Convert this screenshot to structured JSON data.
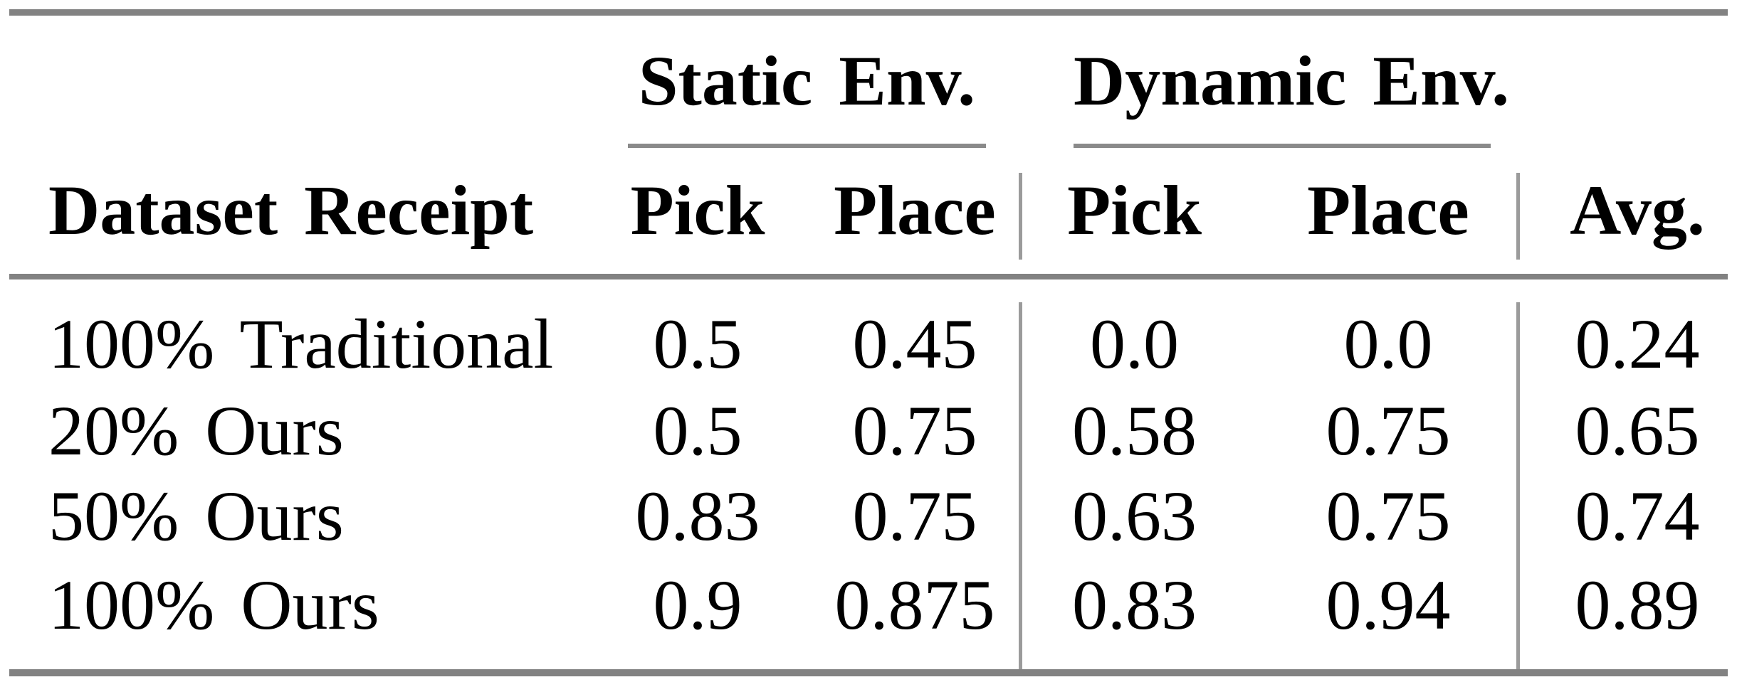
{
  "colors": {
    "background": "#ffffff",
    "text": "#000000",
    "thick_rule_gray": "#828282",
    "cmidrule_gray": "#8a8a8a",
    "vline_gray": "#9b9b9b"
  },
  "table": {
    "col_groups": [
      {
        "label": "Static Env."
      },
      {
        "label": "Dynamic Env."
      }
    ],
    "headers": {
      "dataset": "Dataset Receipt",
      "static_pick": "Pick",
      "static_place": "Place",
      "dynamic_pick": "Pick",
      "dynamic_place": "Place",
      "avg": "Avg."
    },
    "rows": [
      {
        "label": "100% Traditional",
        "static_pick": "0.5",
        "static_place": "0.45",
        "dynamic_pick": "0.0",
        "dynamic_place": "0.0",
        "avg": "0.24"
      },
      {
        "label": "20% Ours",
        "static_pick": "0.5",
        "static_place": "0.75",
        "dynamic_pick": "0.58",
        "dynamic_place": "0.75",
        "avg": "0.65"
      },
      {
        "label": "50% Ours",
        "static_pick": "0.83",
        "static_place": "0.75",
        "dynamic_pick": "0.63",
        "dynamic_place": "0.75",
        "avg": "0.74"
      },
      {
        "label": "100% Ours",
        "static_pick": "0.9",
        "static_place": "0.875",
        "dynamic_pick": "0.83",
        "dynamic_place": "0.94",
        "avg": "0.89"
      }
    ]
  },
  "chart_data": {
    "type": "table",
    "columns": [
      "Dataset Receipt",
      "Static Env. Pick",
      "Static Env. Place",
      "Dynamic Env. Pick",
      "Dynamic Env. Place",
      "Avg."
    ],
    "rows": [
      [
        "100% Traditional",
        0.5,
        0.45,
        0.0,
        0.0,
        0.24
      ],
      [
        "20% Ours",
        0.5,
        0.75,
        0.58,
        0.75,
        0.65
      ],
      [
        "50% Ours",
        0.83,
        0.75,
        0.63,
        0.75,
        0.74
      ],
      [
        "100% Ours",
        0.9,
        0.875,
        0.83,
        0.94,
        0.89
      ]
    ]
  }
}
